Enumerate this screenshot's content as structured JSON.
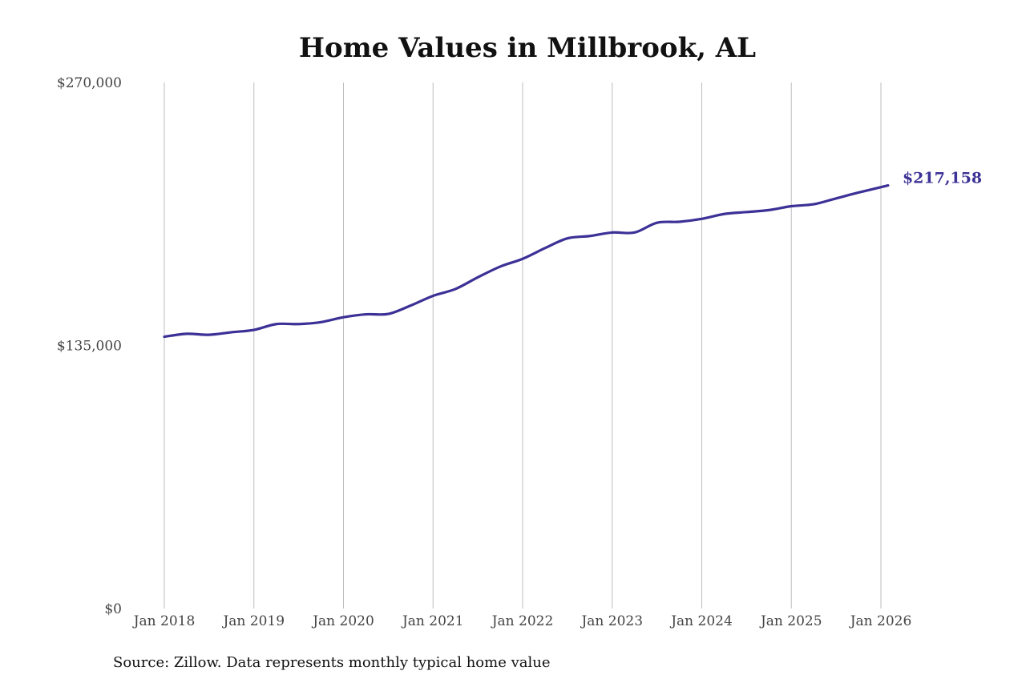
{
  "chart_data": {
    "type": "line",
    "title": "Home Values in Millbrook, AL",
    "xlabel": "",
    "ylabel": "",
    "ylim": [
      0,
      270000
    ],
    "xlim": [
      2018,
      2026.1
    ],
    "grid": "vertical",
    "yticks": [
      {
        "value": 0,
        "label": "$0"
      },
      {
        "value": 135000,
        "label": "$135,000"
      },
      {
        "value": 270000,
        "label": "$270,000"
      }
    ],
    "xticks": [
      {
        "value": 2018,
        "label": "Jan 2018"
      },
      {
        "value": 2019,
        "label": "Jan 2019"
      },
      {
        "value": 2020,
        "label": "Jan 2020"
      },
      {
        "value": 2021,
        "label": "Jan 2021"
      },
      {
        "value": 2022,
        "label": "Jan 2022"
      },
      {
        "value": 2023,
        "label": "Jan 2023"
      },
      {
        "value": 2024,
        "label": "Jan 2024"
      },
      {
        "value": 2025,
        "label": "Jan 2025"
      },
      {
        "value": 2026,
        "label": "Jan 2026"
      }
    ],
    "series": [
      {
        "name": "Typical home value",
        "color": "#3b3196",
        "x": [
          2018.0,
          2018.25,
          2018.5,
          2018.75,
          2019.0,
          2019.25,
          2019.5,
          2019.75,
          2020.0,
          2020.25,
          2020.5,
          2020.75,
          2021.0,
          2021.25,
          2021.5,
          2021.75,
          2022.0,
          2022.25,
          2022.5,
          2022.75,
          2023.0,
          2023.25,
          2023.5,
          2023.75,
          2024.0,
          2024.25,
          2024.5,
          2024.75,
          2025.0,
          2025.25,
          2025.5,
          2025.75,
          2026.08
        ],
        "values": [
          139500,
          141000,
          140500,
          141800,
          143000,
          146000,
          146000,
          147000,
          149500,
          151000,
          151200,
          155500,
          160500,
          164000,
          170000,
          175500,
          179500,
          185000,
          190000,
          191200,
          193000,
          193000,
          198000,
          198500,
          200000,
          202500,
          203500,
          204500,
          206500,
          207500,
          210500,
          213500,
          217158
        ]
      }
    ],
    "end_label": "$217,158"
  },
  "source": "Source: Zillow. Data represents monthly typical home value"
}
